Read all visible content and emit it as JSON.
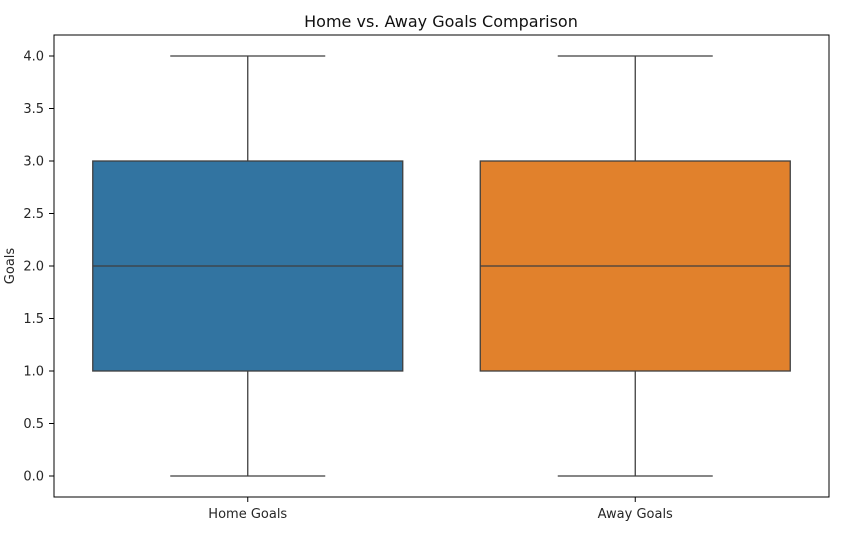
{
  "chart_data": {
    "type": "box",
    "title": "Home vs. Away Goals Comparison",
    "xlabel": "",
    "ylabel": "Goals",
    "ylim": [
      -0.2,
      4.2
    ],
    "yticks": [
      "0.0",
      "0.5",
      "1.0",
      "1.5",
      "2.0",
      "2.5",
      "3.0",
      "3.5",
      "4.0"
    ],
    "grid": false,
    "categories": [
      "Home Goals",
      "Away Goals"
    ],
    "boxes": [
      {
        "category": "Home Goals",
        "min": 0,
        "q1": 1,
        "median": 2,
        "q3": 3,
        "max": 4,
        "color": "#3274a1"
      },
      {
        "category": "Away Goals",
        "min": 0,
        "q1": 1,
        "median": 2,
        "q3": 3,
        "max": 4,
        "color": "#e1812c"
      }
    ],
    "line_color": "#3f3f3f"
  }
}
